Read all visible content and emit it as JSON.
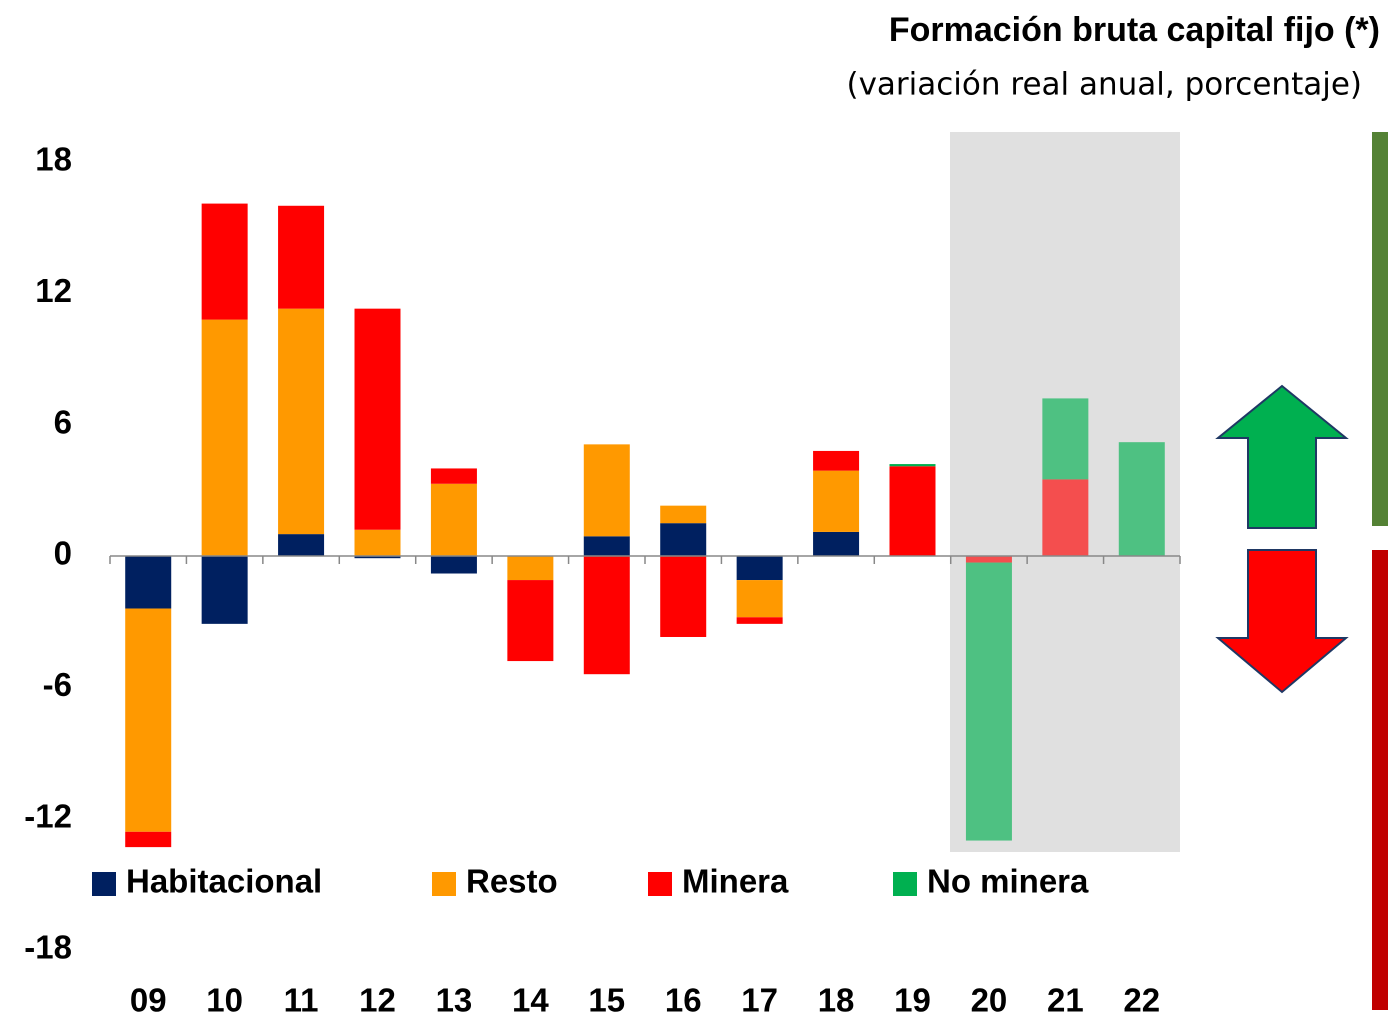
{
  "chart_data": {
    "type": "bar",
    "stacked": true,
    "title": "Formación bruta capital fijo (*)",
    "subtitle": "(variación real anual, porcentaje)",
    "categories": [
      "09",
      "10",
      "11",
      "12",
      "13",
      "14",
      "15",
      "16",
      "17",
      "18",
      "19",
      "20",
      "21",
      "22"
    ],
    "series": [
      {
        "name": "Habitacional",
        "color": "#002060",
        "values": [
          -2.4,
          -3.1,
          1.0,
          -0.1,
          -0.8,
          null,
          0.9,
          1.5,
          -1.1,
          1.1,
          null,
          null,
          null,
          null
        ]
      },
      {
        "name": "Resto",
        "color": "#ff9900",
        "values": [
          -10.2,
          10.8,
          10.3,
          1.2,
          3.3,
          -1.1,
          4.2,
          0.8,
          -1.7,
          2.8,
          null,
          null,
          null,
          null
        ]
      },
      {
        "name": "Minera",
        "color": "#ff0000",
        "values": [
          -0.7,
          5.3,
          4.7,
          10.1,
          0.7,
          -3.7,
          -5.4,
          -3.7,
          -0.3,
          0.9,
          4.1,
          -0.3,
          3.5,
          null
        ]
      },
      {
        "name": "No minera",
        "color": "#00b050",
        "values": [
          null,
          null,
          null,
          null,
          null,
          null,
          null,
          null,
          null,
          null,
          0.1,
          -12.7,
          3.7,
          5.2
        ]
      }
    ],
    "ylim": [
      -18,
      18
    ],
    "yticks": [
      18,
      12,
      6,
      0,
      -6,
      -12,
      -18
    ],
    "grid": false
  }
}
